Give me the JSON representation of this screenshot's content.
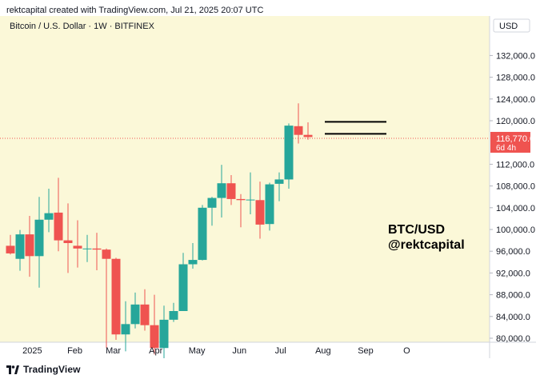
{
  "header": {
    "caption": "rektcapital created with TradingView.com, Jul 21, 2025 20:07 UTC"
  },
  "footer": {
    "brand": "TradingView"
  },
  "chart_data": {
    "type": "candlestick",
    "title": "Bitcoin / U.S. Dollar · 1W · BITFINEX",
    "currency_label": "USD",
    "annotation": [
      "BTC/USD",
      "@rektcapital"
    ],
    "y_ticks": [
      "132,000.0",
      "128,000.0",
      "124,000.0",
      "120,000.0",
      "112,000.0",
      "108,000.0",
      "104,000.0",
      "100,000.0",
      "96,000.0",
      "92,000.0",
      "88,000.0",
      "84,000.0",
      "80,000.0"
    ],
    "x_ticks": [
      "2025",
      "Feb",
      "Mar",
      "Apr",
      "May",
      "Jun",
      "Jul",
      "Aug",
      "Sep",
      "O"
    ],
    "current_price": {
      "value": "116,770.0",
      "countdown": "6d 4h"
    },
    "horizontal_lines": [
      119800,
      117600
    ],
    "colors": {
      "up": "#26a69a",
      "down": "#ef5350",
      "background": "#fbf8d8",
      "price_line": "#ef5350"
    },
    "candles": [
      {
        "x": "2024-12-16",
        "o": 97000,
        "h": 99000,
        "l": 95400,
        "c": 95600
      },
      {
        "x": "2024-12-23",
        "o": 94600,
        "h": 99900,
        "l": 92400,
        "c": 99100
      },
      {
        "x": "2024-12-30",
        "o": 99100,
        "h": 102500,
        "l": 91300,
        "c": 95100
      },
      {
        "x": "2025-01-06",
        "o": 95100,
        "h": 106000,
        "l": 89300,
        "c": 101800
      },
      {
        "x": "2025-01-13",
        "o": 101800,
        "h": 107500,
        "l": 99500,
        "c": 103000
      },
      {
        "x": "2025-01-20",
        "o": 103100,
        "h": 109500,
        "l": 96000,
        "c": 98000
      },
      {
        "x": "2025-01-27",
        "o": 98000,
        "h": 104800,
        "l": 92000,
        "c": 97500
      },
      {
        "x": "2025-02-03",
        "o": 97000,
        "h": 101700,
        "l": 93000,
        "c": 96500
      },
      {
        "x": "2025-02-10",
        "o": 96500,
        "h": 99000,
        "l": 94000,
        "c": 96500
      },
      {
        "x": "2025-02-17",
        "o": 96500,
        "h": 99400,
        "l": 92500,
        "c": 96300
      },
      {
        "x": "2025-02-24",
        "o": 96300,
        "h": 96500,
        "l": 78200,
        "c": 94600
      },
      {
        "x": "2025-03-03",
        "o": 94600,
        "h": 94800,
        "l": 79700,
        "c": 80700
      },
      {
        "x": "2025-03-10",
        "o": 80700,
        "h": 86800,
        "l": 77600,
        "c": 82600
      },
      {
        "x": "2025-03-17",
        "o": 82600,
        "h": 88400,
        "l": 81800,
        "c": 86200
      },
      {
        "x": "2025-03-24",
        "o": 86200,
        "h": 89000,
        "l": 81400,
        "c": 82400
      },
      {
        "x": "2025-03-31",
        "o": 82400,
        "h": 88000,
        "l": 77000,
        "c": 78200
      },
      {
        "x": "2025-04-07",
        "o": 78200,
        "h": 86000,
        "l": 74500,
        "c": 83400
      },
      {
        "x": "2025-04-14",
        "o": 83400,
        "h": 86500,
        "l": 83000,
        "c": 85000
      },
      {
        "x": "2025-04-21",
        "o": 85000,
        "h": 95700,
        "l": 85000,
        "c": 93600
      },
      {
        "x": "2025-04-28",
        "o": 93600,
        "h": 97500,
        "l": 92800,
        "c": 94400
      },
      {
        "x": "2025-05-05",
        "o": 94400,
        "h": 104500,
        "l": 94300,
        "c": 104000
      },
      {
        "x": "2025-05-12",
        "o": 104000,
        "h": 106000,
        "l": 100700,
        "c": 105800
      },
      {
        "x": "2025-05-19",
        "o": 105800,
        "h": 111900,
        "l": 102200,
        "c": 108500
      },
      {
        "x": "2025-05-26",
        "o": 108500,
        "h": 110000,
        "l": 104500,
        "c": 105600
      },
      {
        "x": "2025-06-02",
        "o": 105600,
        "h": 106500,
        "l": 100400,
        "c": 105400
      },
      {
        "x": "2025-06-09",
        "o": 105400,
        "h": 110500,
        "l": 102800,
        "c": 105500
      },
      {
        "x": "2025-06-16",
        "o": 105400,
        "h": 108800,
        "l": 98300,
        "c": 100900
      },
      {
        "x": "2025-06-23",
        "o": 101000,
        "h": 108600,
        "l": 99800,
        "c": 108300
      },
      {
        "x": "2025-06-30",
        "o": 108400,
        "h": 110500,
        "l": 105200,
        "c": 109200
      },
      {
        "x": "2025-07-07",
        "o": 109200,
        "h": 119500,
        "l": 107500,
        "c": 119100
      },
      {
        "x": "2025-07-14",
        "o": 119000,
        "h": 123200,
        "l": 115800,
        "c": 117400
      },
      {
        "x": "2025-07-21",
        "o": 117400,
        "h": 119700,
        "l": 116500,
        "c": 117000
      }
    ]
  }
}
